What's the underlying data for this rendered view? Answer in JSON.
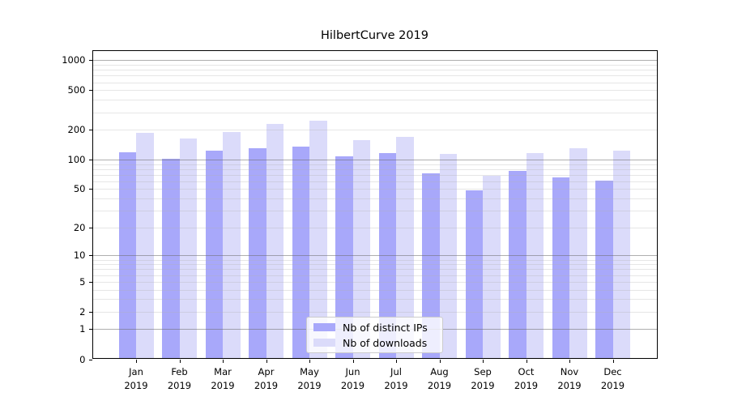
{
  "title": "HilbertCurve 2019",
  "chart_data": {
    "type": "bar",
    "title": "HilbertCurve 2019",
    "scale": "log(v+1) symlog-style, includes 0",
    "categories": [
      "Jan",
      "Feb",
      "Mar",
      "Apr",
      "May",
      "Jun",
      "Jul",
      "Aug",
      "Sep",
      "Oct",
      "Nov",
      "Dec"
    ],
    "category_year_line": "2019",
    "series": [
      {
        "name": "Nb of distinct IPs",
        "color": "#a8a8fa",
        "values": [
          118,
          101,
          123,
          130,
          136,
          107,
          116,
          72,
          49,
          76,
          66,
          61
        ]
      },
      {
        "name": "Nb of downloads",
        "color": "#dbdbfa",
        "values": [
          186,
          163,
          190,
          227,
          245,
          156,
          169,
          115,
          68,
          116,
          130,
          122
        ]
      }
    ],
    "yticks": [
      1000,
      500,
      200,
      100,
      50,
      20,
      10,
      5,
      2,
      1,
      0
    ],
    "ylim": [
      0,
      1260
    ],
    "grid": true,
    "legend": {
      "position": "lower center",
      "entries": [
        "Nb of distinct IPs",
        "Nb of downloads"
      ]
    }
  }
}
